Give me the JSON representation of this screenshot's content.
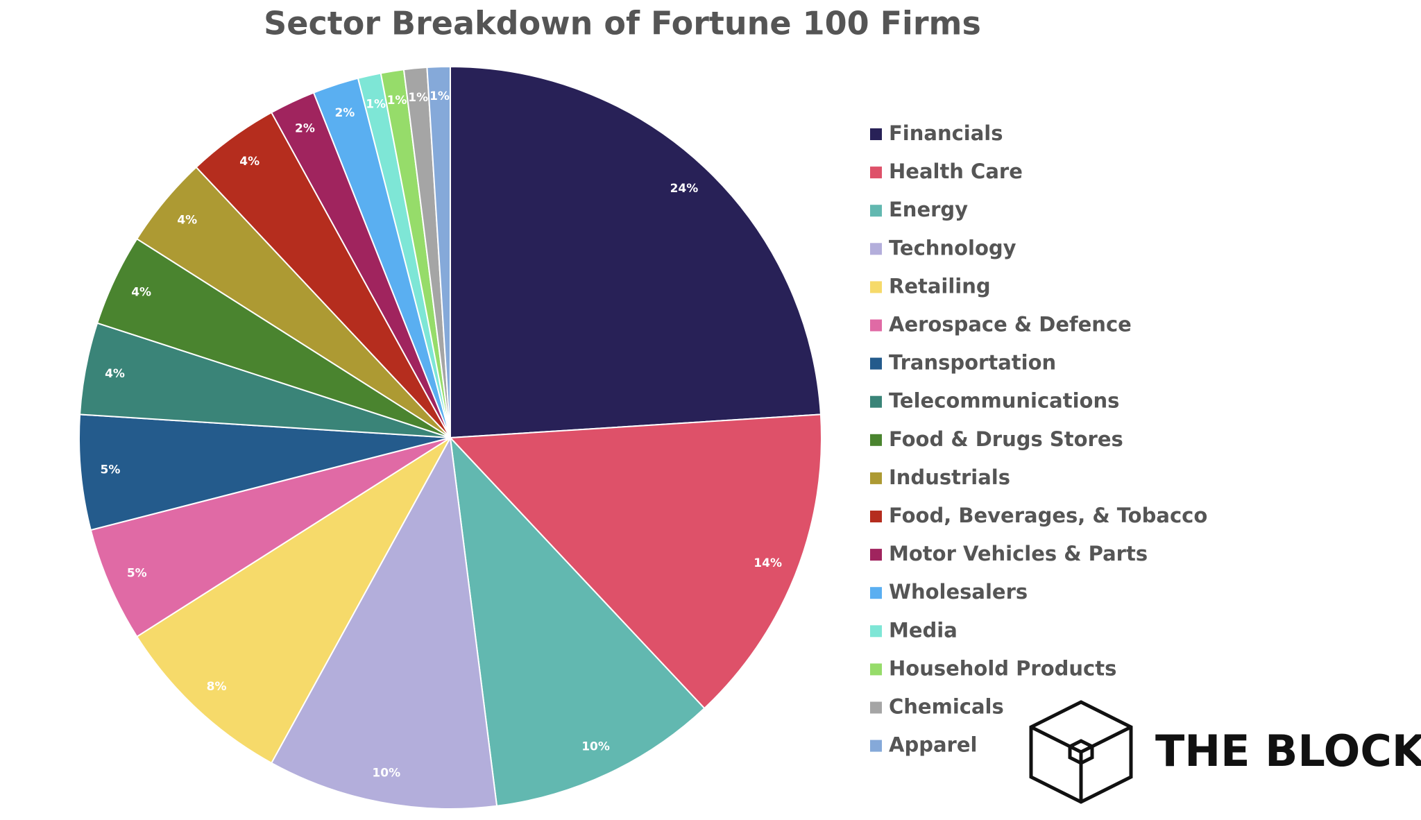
{
  "chart_data": {
    "type": "pie",
    "title": "Sector Breakdown of Fortune 100 Firms",
    "categories": [
      "Financials",
      "Health Care",
      "Energy",
      "Technology",
      "Retailing",
      "Aerospace & Defence",
      "Transportation",
      "Telecommunications",
      "Food & Drugs Stores",
      "Industrials",
      "Food, Beverages, & Tobacco",
      "Motor Vehicles & Parts",
      "Wholesalers",
      "Media",
      "Household Products",
      "Chemicals",
      "Apparel"
    ],
    "values": [
      24,
      14,
      10,
      10,
      8,
      5,
      5,
      4,
      4,
      4,
      4,
      2,
      2,
      1,
      1,
      1,
      1
    ],
    "value_labels": [
      "24%",
      "14%",
      "10%",
      "10%",
      "8%",
      "5%",
      "5%",
      "4%",
      "4%",
      "4%",
      "4%",
      "2%",
      "2%",
      "1%",
      "1%",
      "1%",
      "1%"
    ],
    "colors": [
      "#282157",
      "#de5169",
      "#62b8b0",
      "#b3aedb",
      "#f6da6a",
      "#e06aa5",
      "#245b8c",
      "#3a8478",
      "#4a842f",
      "#ad9a33",
      "#b52d1e",
      "#a0245e",
      "#5aaff1",
      "#7ee6d6",
      "#96dc6a",
      "#a5a5a5",
      "#85a9d9"
    ],
    "legend": "right"
  },
  "logo": {
    "text": "THE BLOCK"
  }
}
